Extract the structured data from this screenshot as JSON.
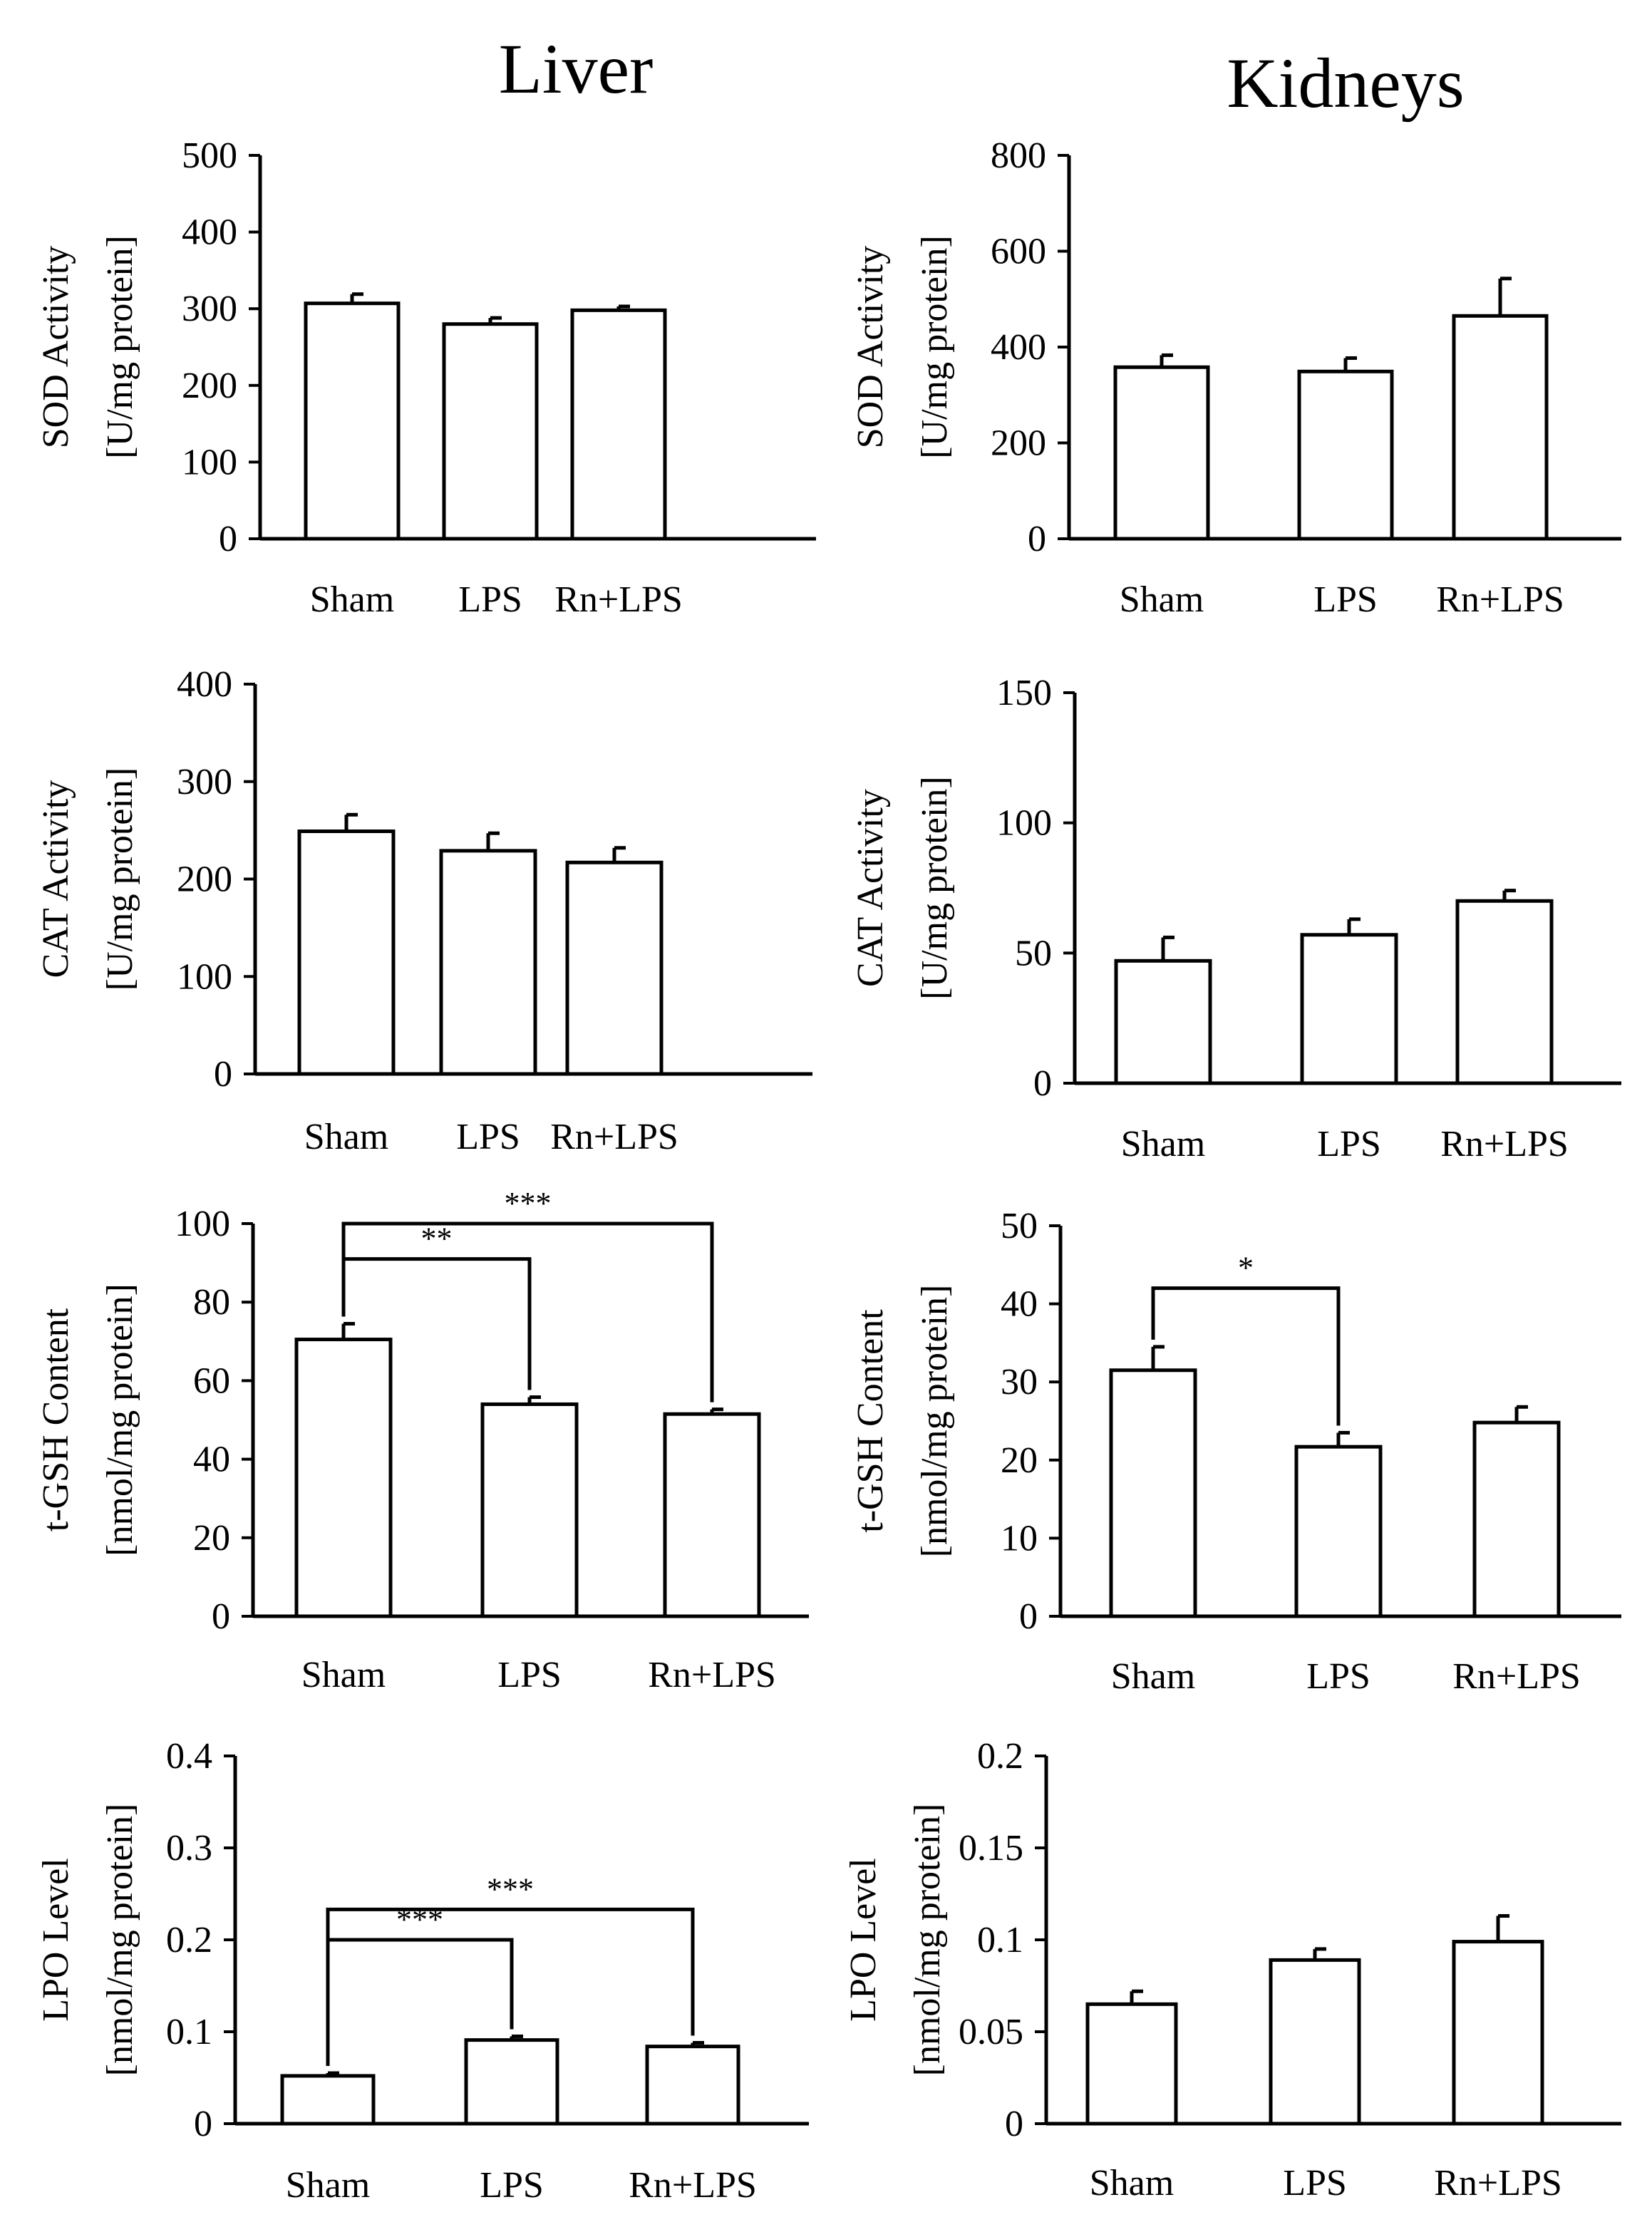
{
  "column_titles": [
    "Liver",
    "Kidneys"
  ],
  "chart_data": [
    {
      "id": "liver-sod",
      "type": "bar",
      "ylabel": [
        "SOD Activity",
        "[U/mg protein]"
      ],
      "categories": [
        "Sham",
        "LPS",
        "Rn+LPS"
      ],
      "values": [
        307,
        280,
        298
      ],
      "errors": [
        12,
        8,
        5
      ],
      "ylim": [
        0,
        500
      ],
      "yticks": [
        0,
        100,
        200,
        300,
        400,
        500
      ],
      "tick_labels": [
        "0",
        "100",
        "200",
        "300",
        "400",
        "500"
      ],
      "significance": []
    },
    {
      "id": "kidney-sod",
      "type": "bar",
      "ylabel": [
        "SOD Activity",
        "[U/mg protein]"
      ],
      "categories": [
        "Sham",
        "LPS",
        "Rn+LPS"
      ],
      "values": [
        358,
        349,
        465
      ],
      "errors": [
        25,
        28,
        78
      ],
      "ylim": [
        0,
        800
      ],
      "yticks": [
        0,
        200,
        400,
        600,
        800
      ],
      "tick_labels": [
        "0",
        "200",
        "400",
        "600",
        "800"
      ],
      "significance": []
    },
    {
      "id": "liver-cat",
      "type": "bar",
      "ylabel": [
        "CAT Activity",
        "[U/mg protein]"
      ],
      "categories": [
        "Sham",
        "LPS",
        "Rn+LPS"
      ],
      "values": [
        249,
        229,
        217
      ],
      "errors": [
        17,
        18,
        15
      ],
      "ylim": [
        0,
        400
      ],
      "yticks": [
        0,
        100,
        200,
        300,
        400
      ],
      "tick_labels": [
        "0",
        "100",
        "200",
        "300",
        "400"
      ],
      "significance": []
    },
    {
      "id": "kidney-cat",
      "type": "bar",
      "ylabel": [
        "CAT Activity",
        "[U/mg protein]"
      ],
      "categories": [
        "Sham",
        "LPS",
        "Rn+LPS"
      ],
      "values": [
        47,
        57,
        70
      ],
      "errors": [
        9,
        6,
        4
      ],
      "ylim": [
        0,
        150
      ],
      "yticks": [
        0,
        50,
        100,
        150
      ],
      "tick_labels": [
        "0",
        "50",
        "100",
        "150"
      ],
      "significance": []
    },
    {
      "id": "liver-gsh",
      "type": "bar",
      "ylabel": [
        "t-GSH Content",
        "[nmol/mg protein]"
      ],
      "categories": [
        "Sham",
        "LPS",
        "Rn+LPS"
      ],
      "values": [
        70.5,
        54,
        51.5
      ],
      "errors": [
        4,
        1.8,
        1.2
      ],
      "ylim": [
        0,
        100
      ],
      "yticks": [
        0,
        20,
        40,
        60,
        80,
        100
      ],
      "tick_labels": [
        "0",
        "20",
        "40",
        "60",
        "80",
        "100"
      ],
      "significance": [
        {
          "from": 0,
          "to": 2,
          "label": "***",
          "y": 100
        },
        {
          "from": 0,
          "to": 1,
          "label": "**",
          "y": 91
        }
      ]
    },
    {
      "id": "kidney-gsh",
      "type": "bar",
      "ylabel": [
        "t-GSH Content",
        "[nmol/mg protein]"
      ],
      "categories": [
        "Sham",
        "LPS",
        "Rn+LPS"
      ],
      "values": [
        31.5,
        21.7,
        24.8
      ],
      "errors": [
        3,
        1.8,
        2
      ],
      "ylim": [
        0,
        50
      ],
      "yticks": [
        0,
        10,
        20,
        30,
        40,
        50
      ],
      "tick_labels": [
        "0",
        "10",
        "20",
        "30",
        "40",
        "50"
      ],
      "significance": [
        {
          "from": 0,
          "to": 1,
          "label": "*",
          "y": 42
        }
      ]
    },
    {
      "id": "liver-lpo",
      "type": "bar",
      "ylabel": [
        "LPO Level",
        "[nmol/mg protein]"
      ],
      "categories": [
        "Sham",
        "LPS",
        "Rn+LPS"
      ],
      "values": [
        0.052,
        0.091,
        0.084
      ],
      "errors": [
        0.003,
        0.004,
        0.004
      ],
      "ylim": [
        0,
        0.4
      ],
      "yticks": [
        0,
        0.1,
        0.2,
        0.3,
        0.4
      ],
      "tick_labels": [
        "0",
        "0.1",
        "0.2",
        "0.3",
        "0.4"
      ],
      "significance": [
        {
          "from": 0,
          "to": 2,
          "label": "***",
          "y": 0.233
        },
        {
          "from": 0,
          "to": 1,
          "label": "***",
          "y": 0.2
        }
      ]
    },
    {
      "id": "kidney-lpo",
      "type": "bar",
      "ylabel": [
        "LPO Level",
        "[nmol/mg protein]"
      ],
      "categories": [
        "Sham",
        "LPS",
        "Rn+LPS"
      ],
      "values": [
        0.065,
        0.089,
        0.099
      ],
      "errors": [
        0.007,
        0.006,
        0.014
      ],
      "ylim": [
        0,
        0.2
      ],
      "yticks": [
        0,
        0.05,
        0.1,
        0.15,
        0.2
      ],
      "tick_labels": [
        "0",
        "0.05",
        "0.1",
        "0.15",
        "0.2"
      ],
      "significance": []
    }
  ]
}
